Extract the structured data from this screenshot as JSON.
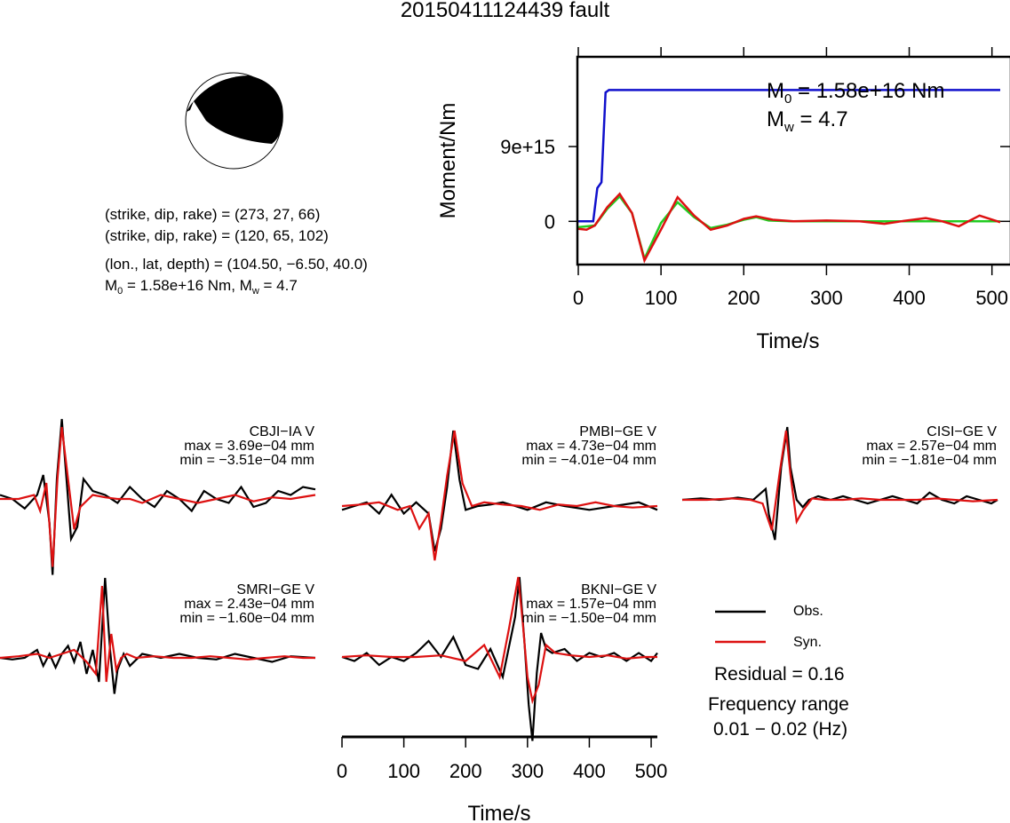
{
  "title": "20150411124439 fault",
  "focal_info": {
    "line1": "(strike, dip, rake) = (273, 27, 66)",
    "line2": "(strike, dip, rake) = (120, 65, 102)",
    "line3": "(lon., lat, depth) = (104.50, −6.50, 40.0)",
    "m0_label": "M",
    "m0_sub": "0",
    "m0_rest": " = 1.58e+16 Nm, M",
    "mw_sub": "w",
    "mw_rest": " = 4.7"
  },
  "moment_panel": {
    "ylabel": "Moment/Nm",
    "xlabel": "Time/s",
    "annot_m0_main": "M",
    "annot_m0_sub": "0",
    "annot_m0_rest": " = 1.58e+16 Nm",
    "annot_mw_main": "M",
    "annot_mw_sub": "w",
    "annot_mw_rest": " = 4.7",
    "y_ticks": [
      "9e+15",
      "0"
    ],
    "x_ticks": [
      "0",
      "100",
      "200",
      "300",
      "400",
      "500"
    ]
  },
  "waveform_axis": {
    "xlabel": "Time/s",
    "x_ticks": [
      "0",
      "100",
      "200",
      "300",
      "400",
      "500"
    ]
  },
  "legend": {
    "obs_label": "Obs.",
    "syn_label": "Syn.",
    "residual": "Residual = 0.16",
    "freq_title": "Frequency range",
    "freq_value": "0.01 − 0.02 (Hz)"
  },
  "stations": [
    {
      "name": "CBJI−IA V",
      "max": "max = 3.69e−04 mm",
      "min": "min = −3.51e−04 mm"
    },
    {
      "name": "PMBI−GE V",
      "max": "max = 4.73e−04 mm",
      "min": "min = −4.01e−04 mm"
    },
    {
      "name": "CISI−GE V",
      "max": "max = 2.57e−04 mm",
      "min": "min = −1.81e−04 mm"
    },
    {
      "name": "SMRI−GE V",
      "max": "max = 2.43e−04 mm",
      "min": "min = −1.60e−04 mm"
    },
    {
      "name": "BKNI−GE V",
      "max": "max = 1.57e−04 mm",
      "min": "min = −1.50e−04 mm"
    }
  ],
  "colors": {
    "obs": "#000000",
    "syn": "#dd1111",
    "cumulative_moment": "#1010cc",
    "moment_rate_fit": "#22cc22",
    "moment_rate_obs": "#dd1111"
  },
  "chart_data": [
    {
      "type": "line",
      "panel": "moment",
      "xlabel": "Time/s",
      "ylabel": "Moment/Nm",
      "xlim": [
        0,
        510
      ],
      "ylim": [
        -5200000000000000.0,
        1.98e+16
      ],
      "series": [
        {
          "name": "cumulative",
          "x": [
            0,
            18,
            23,
            28,
            33,
            37,
            40,
            510
          ],
          "y": [
            0,
            0,
            4000000000000000.0,
            4700000000000000.0,
            1.55e+16,
            1.58e+16,
            1.58e+16,
            1.58e+16
          ]
        },
        {
          "name": "fit",
          "x": [
            0,
            20,
            35,
            50,
            65,
            80,
            100,
            120,
            140,
            160,
            180,
            200,
            215,
            230,
            260,
            300,
            350,
            400,
            450,
            510
          ],
          "y": [
            -700000000000000.0,
            -500000000000000.0,
            1500000000000000.0,
            3000000000000000.0,
            1000000000000000.0,
            -4500000000000000.0,
            -200000000000000.0,
            2300000000000000.0,
            500000000000000.0,
            -800000000000000.0,
            -400000000000000.0,
            200000000000000.0,
            500000000000000.0,
            100000000000000.0,
            0,
            0,
            0,
            0,
            0,
            0
          ]
        },
        {
          "name": "rate",
          "x": [
            0,
            10,
            20,
            35,
            50,
            65,
            80,
            100,
            120,
            140,
            160,
            180,
            200,
            215,
            235,
            260,
            300,
            340,
            370,
            390,
            420,
            440,
            460,
            485,
            510
          ],
          "y": [
            -900000000000000.0,
            -1000000000000000.0,
            -500000000000000.0,
            1700000000000000.0,
            3300000000000000.0,
            1000000000000000.0,
            -4700000000000000.0,
            -1000000000000000.0,
            2900000000000000.0,
            700000000000000.0,
            -1000000000000000.0,
            -500000000000000.0,
            300000000000000.0,
            600000000000000.0,
            200000000000000.0,
            0,
            100000000000000.0,
            0,
            -300000000000000.0,
            0,
            400000000000000.0,
            0,
            -600000000000000.0,
            700000000000000.0,
            -100000000000000.0
          ]
        }
      ]
    },
    {
      "type": "line",
      "panel": "waveforms",
      "xlabel": "Time/s",
      "xlim": [
        0,
        510
      ],
      "series": [
        {
          "name": "CBJI−IA V Obs.",
          "x": [
            0,
            20,
            40,
            60,
            70,
            80,
            85,
            92,
            100,
            108,
            115,
            125,
            135,
            150,
            170,
            190,
            210,
            230,
            250,
            270,
            290,
            310,
            330,
            350,
            370,
            390,
            410,
            430,
            450,
            470,
            490,
            510
          ],
          "y": [
            0.05,
            0.0,
            -0.12,
            0.05,
            0.3,
            -0.3,
            -0.95,
            0.25,
            1.0,
            0.2,
            -0.5,
            -0.35,
            0.25,
            0.1,
            0.05,
            -0.05,
            0.15,
            0.0,
            -0.1,
            0.1,
            0.0,
            -0.15,
            0.1,
            0.0,
            -0.05,
            0.15,
            -0.1,
            -0.05,
            0.1,
            0.05,
            0.15,
            0.12
          ]
        },
        {
          "name": "CBJI−IA V Syn.",
          "x": [
            0,
            30,
            55,
            65,
            75,
            85,
            93,
            100,
            110,
            120,
            130,
            150,
            170,
            190,
            210,
            230,
            260,
            290,
            320,
            350,
            380,
            410,
            440,
            470,
            510
          ],
          "y": [
            0.0,
            0.0,
            0.05,
            -0.15,
            0.2,
            -0.85,
            0.25,
            0.9,
            0.25,
            -0.38,
            -0.1,
            0.05,
            0.02,
            0.0,
            0.0,
            -0.05,
            0.05,
            0.0,
            -0.05,
            0.0,
            0.05,
            -0.03,
            0.02,
            0.0,
            0.05
          ]
        },
        {
          "name": "PMBI−GE V Obs.",
          "x": [
            0,
            20,
            40,
            60,
            80,
            100,
            120,
            140,
            150,
            160,
            170,
            180,
            190,
            200,
            220,
            240,
            260,
            280,
            300,
            330,
            360,
            400,
            440,
            480,
            510
          ],
          "y": [
            -0.05,
            0.0,
            0.05,
            -0.1,
            0.15,
            -0.1,
            0.05,
            -0.1,
            -0.6,
            -0.3,
            0.25,
            1.0,
            0.35,
            -0.05,
            0.0,
            0.02,
            0.05,
            0.0,
            -0.05,
            0.05,
            0.0,
            -0.05,
            0.0,
            0.05,
            -0.05
          ]
        },
        {
          "name": "PMBI−GE V Syn.",
          "x": [
            0,
            30,
            60,
            90,
            110,
            125,
            140,
            150,
            160,
            170,
            182,
            195,
            210,
            230,
            260,
            290,
            320,
            350,
            380,
            410,
            440,
            470,
            510
          ],
          "y": [
            0.0,
            0.02,
            0.05,
            -0.05,
            0.0,
            -0.3,
            -0.1,
            -0.72,
            -0.2,
            0.4,
            1.0,
            0.3,
            0.0,
            0.05,
            0.02,
            0.0,
            -0.05,
            0.02,
            0.0,
            0.05,
            0.0,
            -0.02,
            0.0
          ]
        },
        {
          "name": "CISI−GE V Obs.",
          "x": [
            0,
            30,
            60,
            90,
            115,
            135,
            140,
            150,
            160,
            170,
            175,
            185,
            195,
            205,
            220,
            240,
            260,
            280,
            300,
            320,
            340,
            360,
            380,
            400,
            420,
            440,
            460,
            480,
            500,
            510
          ],
          "y": [
            0.0,
            0.02,
            0.0,
            0.03,
            0.0,
            0.15,
            -0.2,
            -0.55,
            0.45,
            1.0,
            0.45,
            0.0,
            -0.1,
            0.0,
            0.05,
            0.0,
            0.05,
            0.0,
            -0.05,
            0.0,
            0.05,
            0.0,
            -0.05,
            0.1,
            0.0,
            -0.05,
            0.05,
            0.0,
            -0.05,
            0.0
          ]
        },
        {
          "name": "CISI−GE V Syn.",
          "x": [
            0,
            40,
            80,
            110,
            130,
            145,
            158,
            168,
            175,
            185,
            195,
            210,
            230,
            260,
            290,
            320,
            350,
            380,
            410,
            440,
            470,
            510
          ],
          "y": [
            0.0,
            0.0,
            0.02,
            0.0,
            -0.05,
            -0.42,
            0.4,
            0.95,
            0.35,
            -0.3,
            -0.15,
            0.02,
            0.0,
            0.0,
            0.02,
            0.0,
            0.0,
            0.0,
            0.02,
            0.0,
            -0.02,
            0.0
          ]
        },
        {
          "name": "SMRI−GE V Obs.",
          "x": [
            0,
            20,
            40,
            60,
            70,
            80,
            90,
            100,
            110,
            120,
            130,
            140,
            150,
            160,
            170,
            178,
            185,
            190,
            200,
            210,
            230,
            260,
            290,
            320,
            350,
            380,
            410,
            440,
            470,
            510
          ],
          "y": [
            0.0,
            -0.02,
            0.0,
            0.1,
            -0.1,
            0.05,
            -0.12,
            0.05,
            0.15,
            -0.05,
            0.2,
            -0.2,
            0.1,
            -0.3,
            1.0,
            0.1,
            -0.45,
            -0.15,
            0.05,
            -0.1,
            0.05,
            0.0,
            0.05,
            0.0,
            -0.02,
            0.05,
            0.0,
            -0.05,
            0.02,
            0.0
          ]
        },
        {
          "name": "SMRI−GE V Syn.",
          "x": [
            0,
            30,
            60,
            80,
            100,
            120,
            140,
            155,
            165,
            172,
            180,
            188,
            196,
            205,
            220,
            250,
            280,
            310,
            340,
            370,
            400,
            430,
            460,
            490,
            510
          ],
          "y": [
            0.0,
            0.02,
            0.05,
            0.0,
            0.05,
            0.1,
            -0.05,
            -0.2,
            0.9,
            -0.3,
            0.3,
            -0.15,
            0.0,
            0.05,
            0.0,
            0.02,
            0.0,
            0.0,
            0.02,
            0.0,
            -0.02,
            0.0,
            0.02,
            0.0,
            0.0
          ]
        },
        {
          "name": "BKNI−GE V Obs.",
          "x": [
            0,
            20,
            40,
            60,
            80,
            100,
            120,
            140,
            160,
            180,
            200,
            220,
            240,
            260,
            280,
            287,
            295,
            302,
            308,
            315,
            322,
            330,
            340,
            360,
            380,
            400,
            420,
            440,
            460,
            480,
            500,
            510
          ],
          "y": [
            0.0,
            -0.05,
            0.05,
            -0.1,
            0.0,
            -0.05,
            0.05,
            0.2,
            0.0,
            0.25,
            -0.1,
            -0.15,
            0.1,
            -0.25,
            0.5,
            1.0,
            0.2,
            -0.6,
            -1.05,
            -0.2,
            0.3,
            0.1,
            0.05,
            0.1,
            -0.05,
            0.05,
            0.0,
            0.05,
            -0.05,
            0.05,
            -0.05,
            0.05
          ]
        },
        {
          "name": "BKNI−GE V Syn.",
          "x": [
            0,
            40,
            80,
            120,
            160,
            200,
            230,
            255,
            270,
            285,
            292,
            300,
            308,
            318,
            330,
            345,
            370,
            400,
            430,
            460,
            490,
            510
          ],
          "y": [
            0.0,
            0.02,
            0.0,
            0.0,
            0.02,
            -0.05,
            0.15,
            -0.25,
            0.35,
            1.0,
            0.45,
            -0.25,
            -0.55,
            -0.35,
            0.15,
            0.05,
            0.02,
            0.0,
            0.02,
            -0.02,
            0.0,
            0.0
          ]
        }
      ]
    }
  ]
}
